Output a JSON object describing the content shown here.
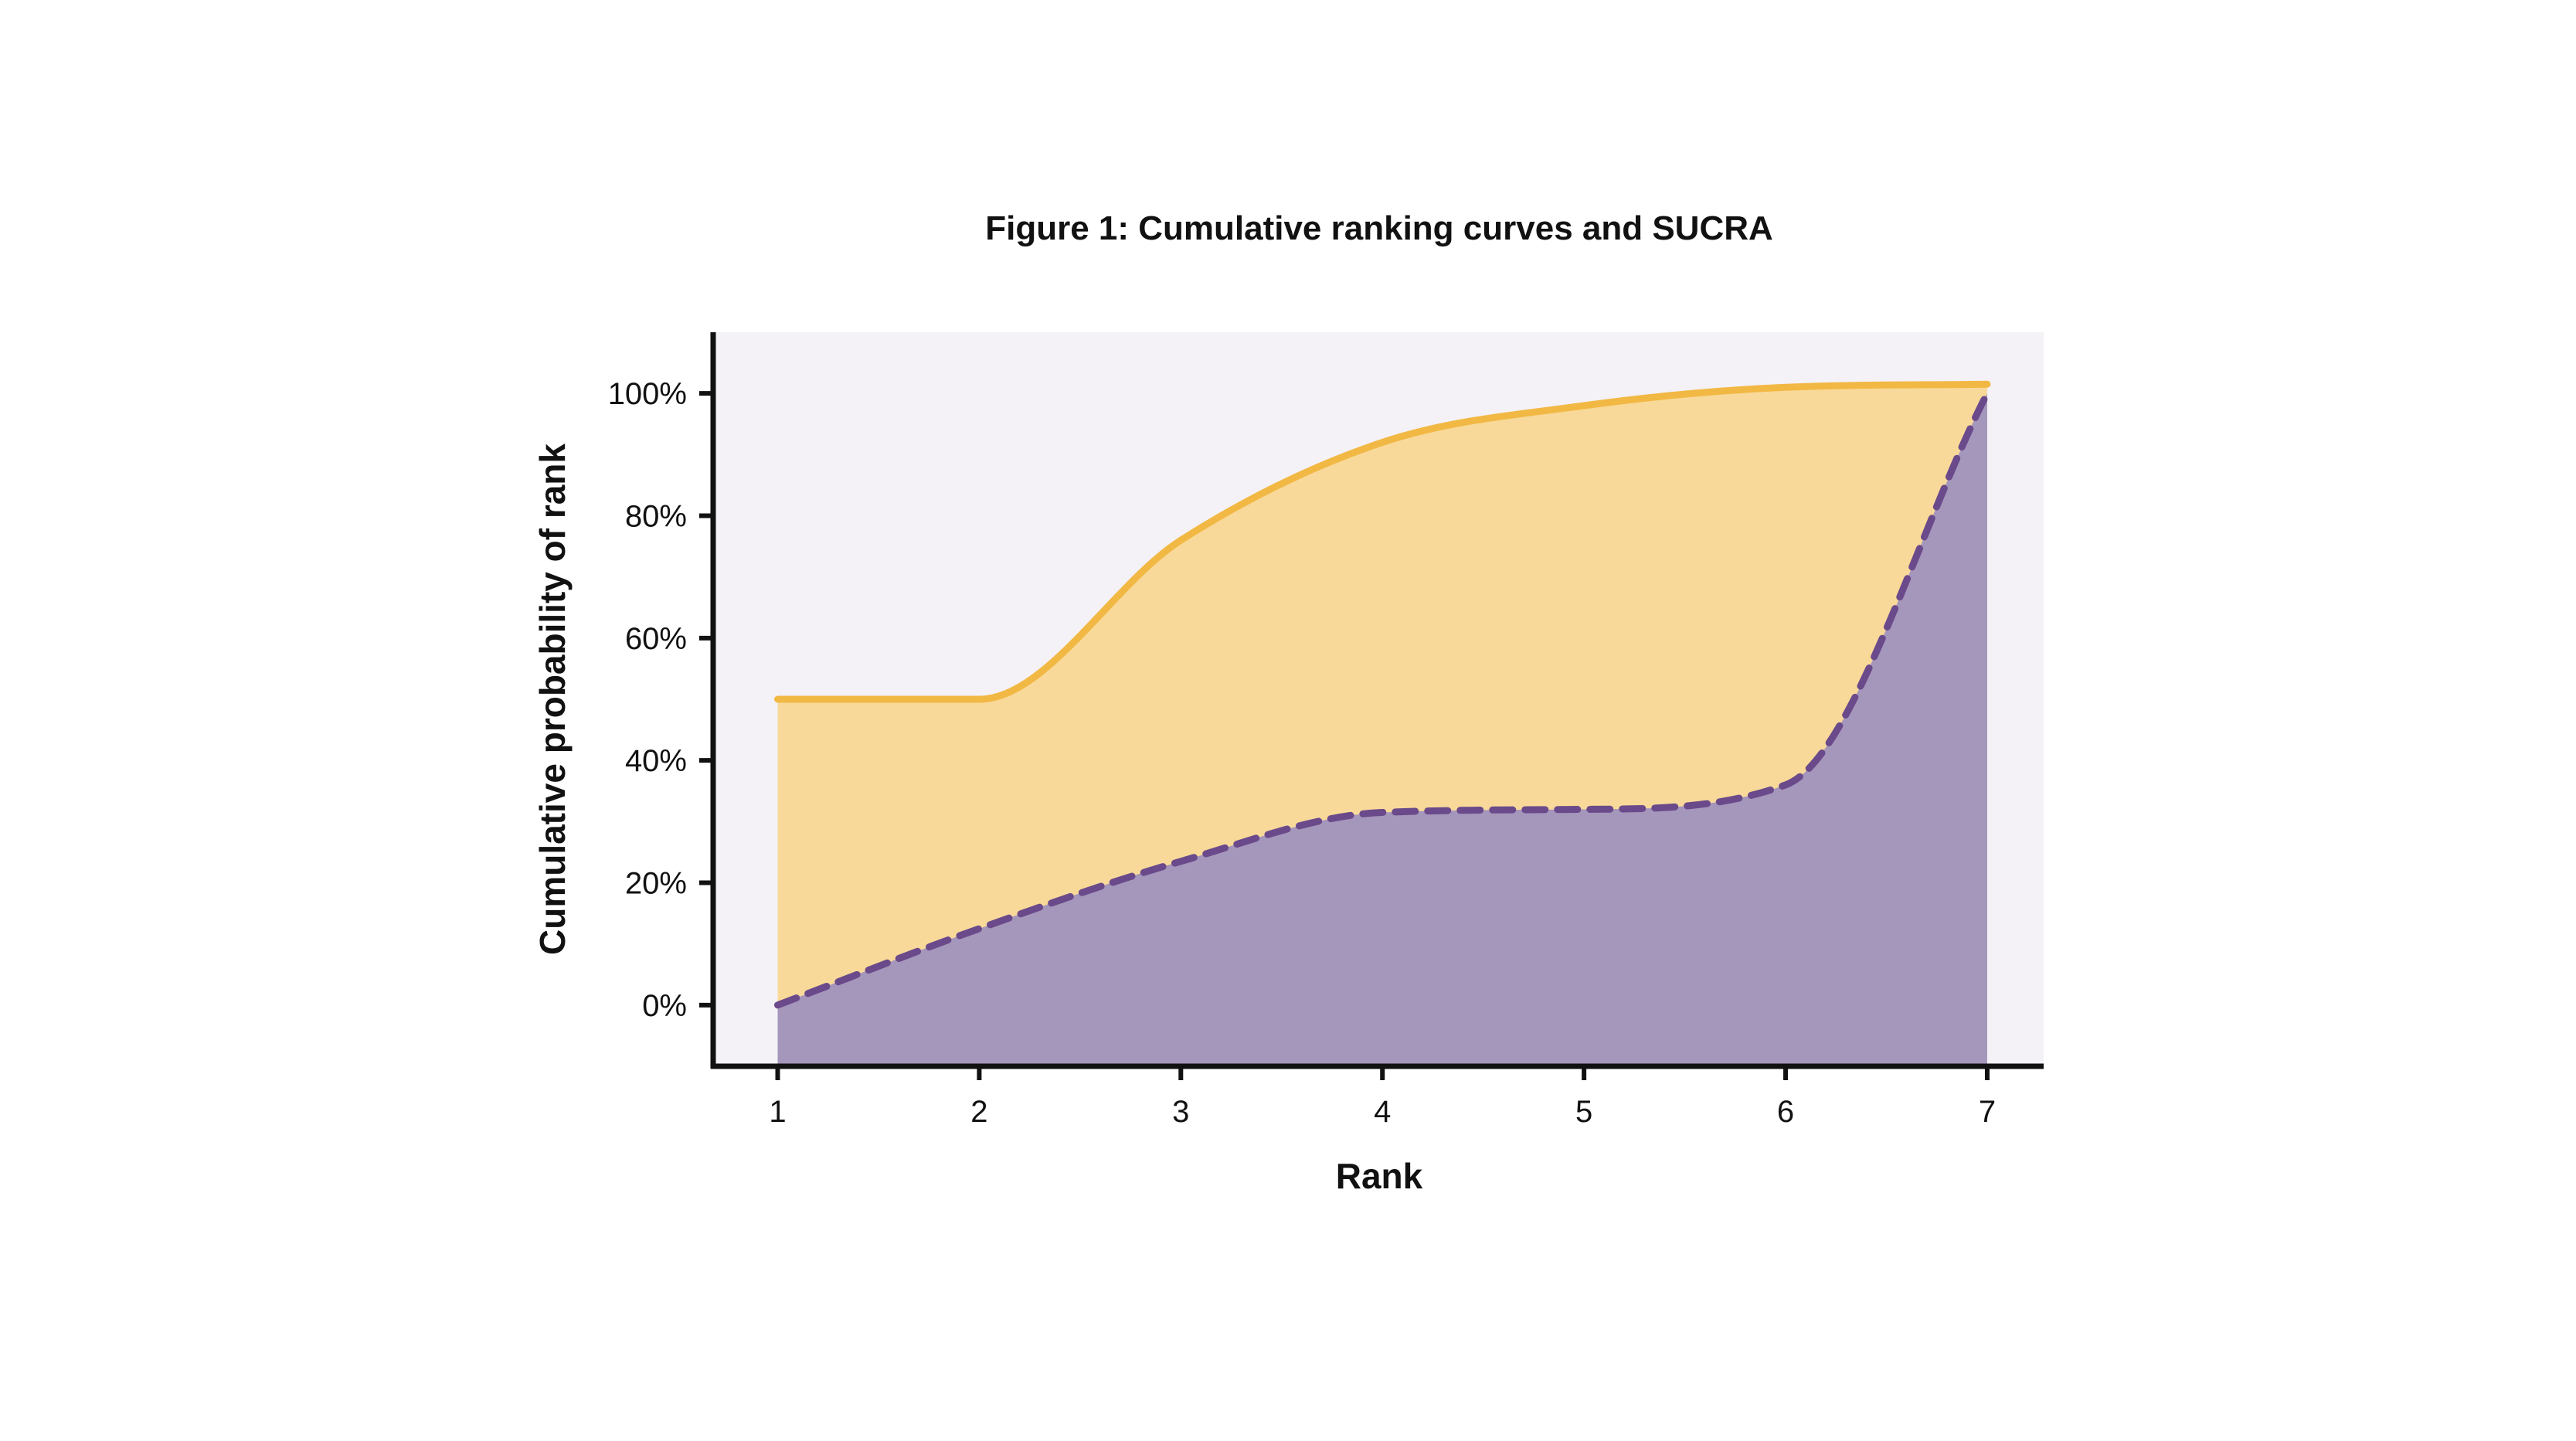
{
  "chart_data": {
    "type": "area",
    "title": "Figure 1: Cumulative ranking curves and SUCRA",
    "xlabel": "Rank",
    "ylabel": "Cumulative probability of rank",
    "x": [
      1,
      2,
      3,
      4,
      5,
      6,
      7
    ],
    "x_ticks": [
      "1",
      "2",
      "3",
      "4",
      "5",
      "6",
      "7"
    ],
    "y_ticks": [
      "0%",
      "20%",
      "40%",
      "60%",
      "80%",
      "100%"
    ],
    "y_tick_values": [
      0,
      20,
      40,
      60,
      80,
      100
    ],
    "ylim": [
      -10,
      110
    ],
    "xlim": [
      0.68,
      7.28
    ],
    "grid": false,
    "series": [
      {
        "values": [
          50,
          50,
          76,
          92,
          98,
          101,
          101.5
        ],
        "color": "#f2b844",
        "fill": "#f8d999",
        "line_style": "solid"
      },
      {
        "values": [
          0,
          12.5,
          23.5,
          31.5,
          32,
          36,
          100
        ],
        "color": "#6a4a8a",
        "fill": "#a596bb",
        "line_style": "dashed"
      }
    ],
    "plot_background": "#f4f2f7"
  }
}
